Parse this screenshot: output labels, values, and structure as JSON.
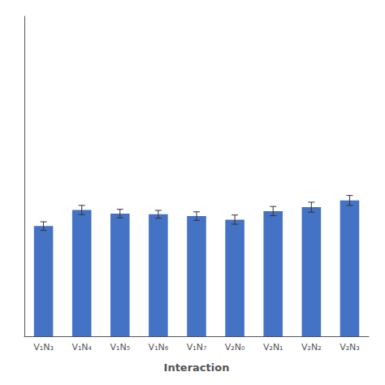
{
  "chart_data": {
    "type": "bar",
    "xlabel": "Interaction",
    "categories": [
      "V₁N₃",
      "V₁N₄",
      "V₁N₅",
      "V₁N₆",
      "V₁N₇",
      "V₂N₀",
      "V₂N₁",
      "V₂N₂",
      "V₂N₃"
    ],
    "values": [
      3.1,
      3.55,
      3.45,
      3.43,
      3.38,
      3.28,
      3.52,
      3.63,
      3.82
    ],
    "errors": [
      0.12,
      0.13,
      0.12,
      0.11,
      0.12,
      0.13,
      0.13,
      0.14,
      0.14
    ],
    "color": "#4472C4",
    "ylim": [
      0,
      9.0
    ],
    "grid": false,
    "tick_labels": "x"
  }
}
